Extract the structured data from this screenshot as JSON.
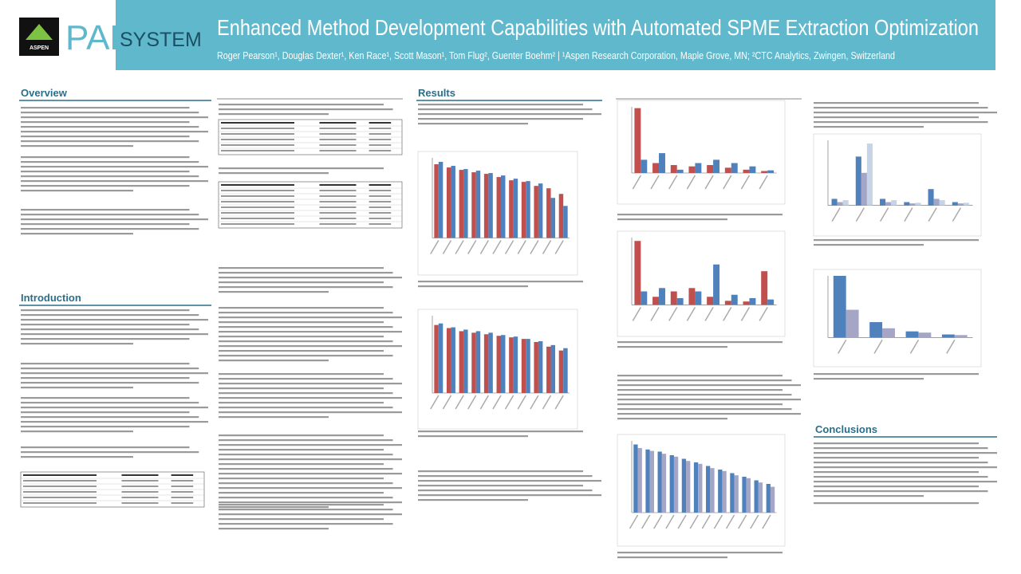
{
  "header": {
    "title": "Enhanced Method Development Capabilities with Automated SPME Extraction Optimization",
    "authors": "Roger Pearson¹, Douglas Dexter¹, Ken Race¹, Scott Mason¹, Tom Flug², Guenter Boehm² | ¹Aspen Research Corporation, Maple Grove, MN; ²CTC Analytics, Zwingen, Switzerland",
    "logo_brand": "ASPEN",
    "logo_pal": "PAL",
    "logo_system": "SYSTEM"
  },
  "sections": {
    "overview": "Overview",
    "introduction": "Introduction",
    "results": "Results",
    "conclusions": "Conclusions"
  },
  "figures": [
    {
      "ylim": [
        0,
        100
      ],
      "series": [
        {
          "color": "#c0504d",
          "values": [
            92,
            88,
            85,
            82,
            80,
            76,
            72,
            70,
            65,
            62,
            55
          ]
        },
        {
          "color": "#4f81bd",
          "values": [
            95,
            90,
            86,
            84,
            81,
            78,
            74,
            71,
            68,
            50,
            40
          ]
        }
      ]
    },
    {
      "ylim": [
        0,
        100
      ],
      "series": [
        {
          "color": "#c0504d",
          "values": [
            88,
            84,
            80,
            78,
            76,
            74,
            72,
            70,
            66,
            60,
            55
          ]
        },
        {
          "color": "#4f81bd",
          "values": [
            90,
            85,
            82,
            80,
            78,
            75,
            73,
            70,
            67,
            62,
            58
          ]
        }
      ]
    },
    {
      "ylim": [
        0,
        100
      ],
      "series": [
        {
          "color": "#c0504d",
          "values": [
            98,
            15,
            12,
            10,
            12,
            8,
            5,
            3
          ]
        },
        {
          "color": "#4f81bd",
          "values": [
            20,
            30,
            5,
            15,
            20,
            15,
            10,
            4
          ]
        }
      ]
    },
    {
      "ylim": [
        0,
        100
      ],
      "series": [
        {
          "color": "#c0504d",
          "values": [
            95,
            12,
            20,
            25,
            12,
            6,
            5,
            50
          ]
        },
        {
          "color": "#4f81bd",
          "values": [
            20,
            25,
            10,
            20,
            60,
            15,
            10,
            8
          ]
        }
      ]
    },
    {
      "ylim": [
        0,
        100
      ],
      "series": [
        {
          "color": "#4f81bd",
          "values": [
            95,
            88,
            85,
            80,
            75,
            70,
            65,
            60,
            55,
            50,
            45,
            40
          ]
        },
        {
          "color": "#a5a5c5",
          "values": [
            90,
            86,
            82,
            78,
            72,
            68,
            62,
            58,
            52,
            48,
            42,
            36
          ]
        }
      ]
    },
    {
      "ylim": [
        0,
        100
      ],
      "series": [
        {
          "color": "#4f81bd",
          "values": [
            10,
            75,
            10,
            5,
            25,
            5
          ]
        },
        {
          "color": "#a5a5c5",
          "values": [
            5,
            50,
            5,
            3,
            10,
            3
          ]
        },
        {
          "color": "#c6d4e8",
          "values": [
            8,
            95,
            8,
            4,
            8,
            4
          ]
        }
      ]
    },
    {
      "ylim": [
        0,
        100
      ],
      "series": [
        {
          "color": "#4f81bd",
          "values": [
            100,
            25,
            10,
            5
          ]
        },
        {
          "color": "#a5a5c5",
          "values": [
            45,
            15,
            8,
            4
          ]
        }
      ]
    }
  ]
}
